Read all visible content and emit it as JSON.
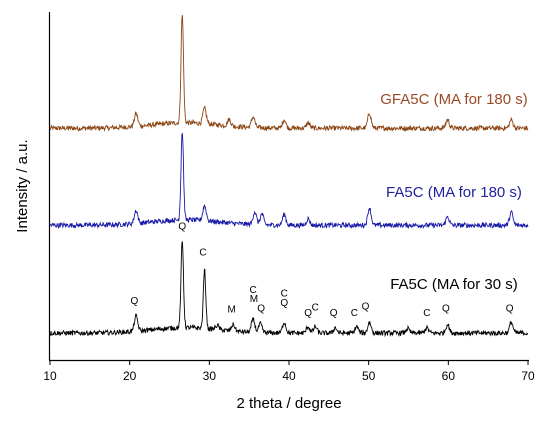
{
  "chart_data": {
    "type": "line",
    "title": "",
    "xlabel": "2 theta / degree",
    "ylabel": "Intensity / a.u.",
    "xlim": [
      10,
      70
    ],
    "x_ticks": [
      10,
      20,
      30,
      40,
      50,
      60,
      70
    ],
    "y_tick_labels": "none",
    "grid": false,
    "legend": "labels placed above each trace",
    "series": [
      {
        "name": "GFA5C (MA for 180 s)",
        "color": "#8B4513",
        "label_color": "#9b4a2a",
        "baseline": 1.9,
        "peaks": [
          {
            "x": 20.8,
            "h": 0.12
          },
          {
            "x": 26.6,
            "h": 1.0
          },
          {
            "x": 29.4,
            "h": 0.14
          },
          {
            "x": 32.5,
            "h": 0.06
          },
          {
            "x": 35.5,
            "h": 0.1
          },
          {
            "x": 39.4,
            "h": 0.08
          },
          {
            "x": 42.4,
            "h": 0.05
          },
          {
            "x": 50.1,
            "h": 0.14
          },
          {
            "x": 59.9,
            "h": 0.08
          },
          {
            "x": 67.9,
            "h": 0.08
          }
        ]
      },
      {
        "name": "FA5C (MA for 180 s)",
        "color": "#1a1aa8",
        "label_color": "#1f1fa0",
        "baseline": 1.0,
        "peaks": [
          {
            "x": 20.8,
            "h": 0.12
          },
          {
            "x": 26.6,
            "h": 0.82
          },
          {
            "x": 29.4,
            "h": 0.14
          },
          {
            "x": 35.7,
            "h": 0.12
          },
          {
            "x": 36.6,
            "h": 0.1
          },
          {
            "x": 39.4,
            "h": 0.1
          },
          {
            "x": 42.4,
            "h": 0.06
          },
          {
            "x": 50.1,
            "h": 0.16
          },
          {
            "x": 59.9,
            "h": 0.08
          },
          {
            "x": 67.9,
            "h": 0.12
          }
        ]
      },
      {
        "name": "FA5C (MA for 30 s)",
        "color": "#000000",
        "label_color": "#000000",
        "baseline": 0.0,
        "peaks": [
          {
            "x": 20.8,
            "h": 0.14
          },
          {
            "x": 26.6,
            "h": 0.8
          },
          {
            "x": 29.4,
            "h": 0.54
          },
          {
            "x": 31.0,
            "h": 0.04
          },
          {
            "x": 33.0,
            "h": 0.06
          },
          {
            "x": 35.5,
            "h": 0.12
          },
          {
            "x": 36.4,
            "h": 0.08
          },
          {
            "x": 39.4,
            "h": 0.1
          },
          {
            "x": 42.4,
            "h": 0.06
          },
          {
            "x": 43.3,
            "h": 0.06
          },
          {
            "x": 45.8,
            "h": 0.05
          },
          {
            "x": 48.5,
            "h": 0.06
          },
          {
            "x": 50.1,
            "h": 0.1
          },
          {
            "x": 54.9,
            "h": 0.04
          },
          {
            "x": 57.3,
            "h": 0.05
          },
          {
            "x": 59.9,
            "h": 0.08
          },
          {
            "x": 67.9,
            "h": 0.1
          }
        ]
      }
    ],
    "annotations": [
      {
        "text": "Q",
        "x": 20.6,
        "y": 0.27
      },
      {
        "text": "Q",
        "x": 26.6,
        "y": 0.96
      },
      {
        "text": "C",
        "x": 29.2,
        "y": 0.72
      },
      {
        "text": "M",
        "x": 32.8,
        "y": 0.19
      },
      {
        "text": "C",
        "x": 35.5,
        "y": 0.37
      },
      {
        "text": "M",
        "x": 35.6,
        "y": 0.29
      },
      {
        "text": "Q",
        "x": 36.5,
        "y": 0.2
      },
      {
        "text": "C",
        "x": 39.4,
        "y": 0.34
      },
      {
        "text": "Q",
        "x": 39.4,
        "y": 0.25
      },
      {
        "text": "C",
        "x": 43.3,
        "y": 0.21
      },
      {
        "text": "Q",
        "x": 42.4,
        "y": 0.16
      },
      {
        "text": "Q",
        "x": 45.6,
        "y": 0.16
      },
      {
        "text": "C",
        "x": 48.2,
        "y": 0.16
      },
      {
        "text": "Q",
        "x": 49.6,
        "y": 0.22
      },
      {
        "text": "C",
        "x": 57.3,
        "y": 0.16
      },
      {
        "text": "Q",
        "x": 59.7,
        "y": 0.2
      },
      {
        "text": "Q",
        "x": 67.7,
        "y": 0.2
      }
    ]
  }
}
